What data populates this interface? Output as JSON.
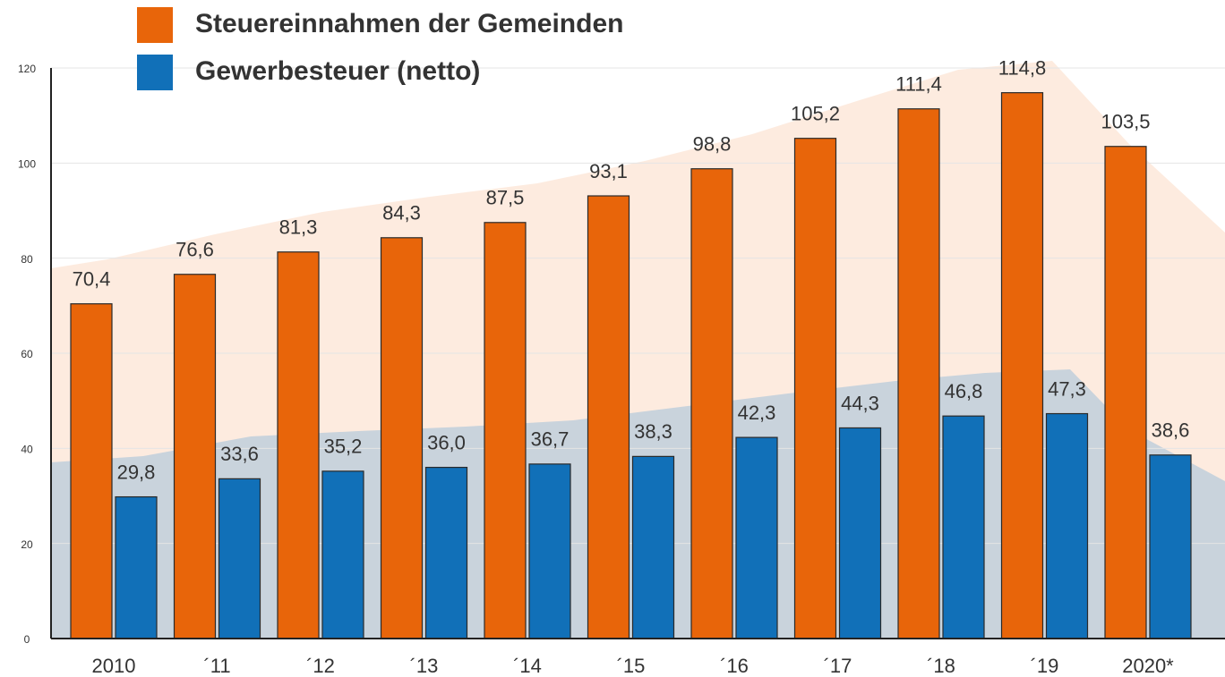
{
  "chart_data": {
    "type": "bar",
    "categories": [
      "2010",
      "´11",
      "´12",
      "´13",
      "´14",
      "´15",
      "´16",
      "´17",
      "´18",
      "´19",
      "2020*"
    ],
    "series": [
      {
        "name": "Steuereinnahmen der Gemeinden",
        "color": "#e8650a",
        "values": [
          70.4,
          76.6,
          81.3,
          84.3,
          87.5,
          93.1,
          98.8,
          105.2,
          111.4,
          114.8,
          103.5
        ],
        "value_labels": [
          "70,4",
          "76,6",
          "81,3",
          "84,3",
          "87,5",
          "93,1",
          "98,8",
          "105,2",
          "111,4",
          "114,8",
          "103,5"
        ]
      },
      {
        "name": "Gewerbesteuer (netto)",
        "color": "#1170b8",
        "values": [
          29.8,
          33.6,
          35.2,
          36.0,
          36.7,
          38.3,
          42.3,
          44.3,
          46.8,
          47.3,
          38.6
        ],
        "value_labels": [
          "29,8",
          "33,6",
          "35,2",
          "36,0",
          "36,7",
          "38,3",
          "42,3",
          "44,3",
          "46,8",
          "47,3",
          "38,6"
        ]
      }
    ],
    "ylim": [
      0,
      120
    ],
    "yticks": [
      0,
      20,
      40,
      60,
      80,
      100,
      120
    ],
    "grid": true,
    "legend": "top-left"
  }
}
